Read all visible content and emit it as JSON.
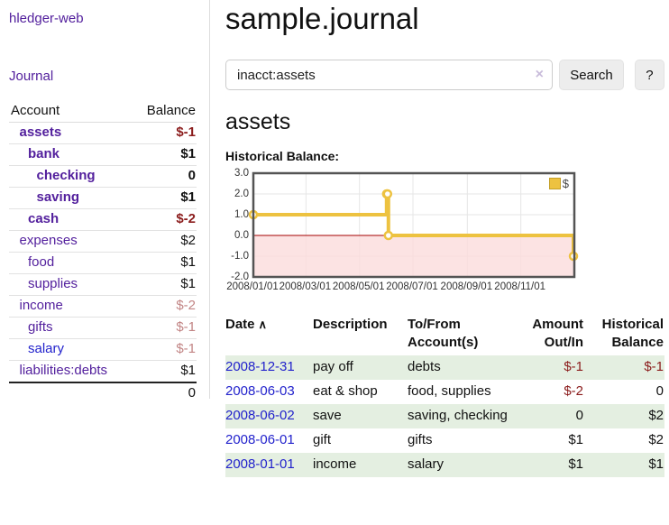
{
  "app": {
    "title": "hledger-web",
    "nav_journal": "Journal"
  },
  "sidebar": {
    "headers": {
      "account": "Account",
      "balance": "Balance"
    },
    "accounts": [
      {
        "name": "assets",
        "indent": 1,
        "bold": true,
        "balance": "$-1",
        "negative": true
      },
      {
        "name": "bank",
        "indent": 2,
        "bold": true,
        "balance": "$1",
        "negative": false
      },
      {
        "name": "checking",
        "indent": 3,
        "bold": true,
        "balance": "0",
        "negative": false
      },
      {
        "name": "saving",
        "indent": 3,
        "bold": true,
        "balance": "$1",
        "negative": false
      },
      {
        "name": "cash",
        "indent": 2,
        "bold": true,
        "balance": "$-2",
        "negative": true
      },
      {
        "name": "expenses",
        "indent": 1,
        "bold": false,
        "balance": "$2",
        "negative": false
      },
      {
        "name": "food",
        "indent": 2,
        "bold": false,
        "balance": "$1",
        "negative": false
      },
      {
        "name": "supplies",
        "indent": 2,
        "bold": false,
        "balance": "$1",
        "negative": false
      },
      {
        "name": "income",
        "indent": 1,
        "bold": false,
        "balance": "$-2",
        "negative": true
      },
      {
        "name": "gifts",
        "indent": 2,
        "bold": false,
        "balance": "$-1",
        "negative": true
      },
      {
        "name": "salary",
        "indent": 2,
        "bold": false,
        "balance": "$-1",
        "negative": true,
        "unvisited": true
      },
      {
        "name": "liabilities:debts",
        "indent": 1,
        "bold": false,
        "balance": "$1",
        "negative": false
      }
    ],
    "total": "0"
  },
  "main": {
    "title": "sample.journal",
    "search": {
      "value": "inacct:assets",
      "clear_icon": "×",
      "button": "Search",
      "help_button": "?"
    },
    "account_heading": "assets",
    "chart_label": "Historical Balance:"
  },
  "journal": {
    "columns": [
      "Date",
      "Description",
      "To/From Account(s)",
      "Amount Out/In",
      "Historical Balance"
    ],
    "sort_icon": "∧",
    "rows": [
      {
        "date": "2008-12-31",
        "description": "pay off",
        "accounts": "debts",
        "amount": "$-1",
        "amount_negative": true,
        "balance": "$-1",
        "balance_negative": true
      },
      {
        "date": "2008-06-03",
        "description": "eat & shop",
        "accounts": "food, supplies",
        "amount": "$-2",
        "amount_negative": true,
        "balance": "0",
        "balance_negative": false
      },
      {
        "date": "2008-06-02",
        "description": "save",
        "accounts": "saving, checking",
        "amount": "0",
        "amount_negative": false,
        "balance": "$2",
        "balance_negative": false
      },
      {
        "date": "2008-06-01",
        "description": "gift",
        "accounts": "gifts",
        "amount": "$1",
        "amount_negative": false,
        "balance": "$2",
        "balance_negative": false
      },
      {
        "date": "2008-01-01",
        "description": "income",
        "accounts": "salary",
        "amount": "$1",
        "amount_negative": false,
        "balance": "$1",
        "balance_negative": false
      }
    ]
  },
  "chart_data": {
    "type": "line",
    "title": "Historical Balance:",
    "series": [
      {
        "name": "$",
        "step": true,
        "points": [
          [
            "2008-01-01",
            1
          ],
          [
            "2008-06-01",
            2
          ],
          [
            "2008-06-02",
            2
          ],
          [
            "2008-06-03",
            0
          ],
          [
            "2008-12-31",
            -1
          ]
        ]
      }
    ],
    "x_range": [
      "2008-01-01",
      "2009-01-01"
    ],
    "x_ticks": [
      "2008/01/01",
      "2008/03/01",
      "2008/05/01",
      "2008/07/01",
      "2008/09/01",
      "2008/11/01"
    ],
    "ylim": [
      -2,
      3
    ],
    "y_ticks": [
      3,
      2,
      1,
      0,
      -1,
      -2
    ],
    "y_tick_labels": [
      "3.0",
      "2.0",
      "1.0",
      "0.0",
      "-1.0",
      "-2.0"
    ],
    "legend": {
      "label": "$",
      "position": "top-right"
    },
    "grid": true
  },
  "colors": {
    "link_purple": "#53209d",
    "link_blue": "#2222cc",
    "negative_dark": "#8b1c1c",
    "negative_light": "#c28585",
    "row_green": "#e4efe1",
    "series_yellow": "#edc240",
    "negative_fill": "#fbdcdc",
    "zero_line": "#a40000",
    "grid_line": "#e6e6e6",
    "plot_border": "#545454"
  }
}
